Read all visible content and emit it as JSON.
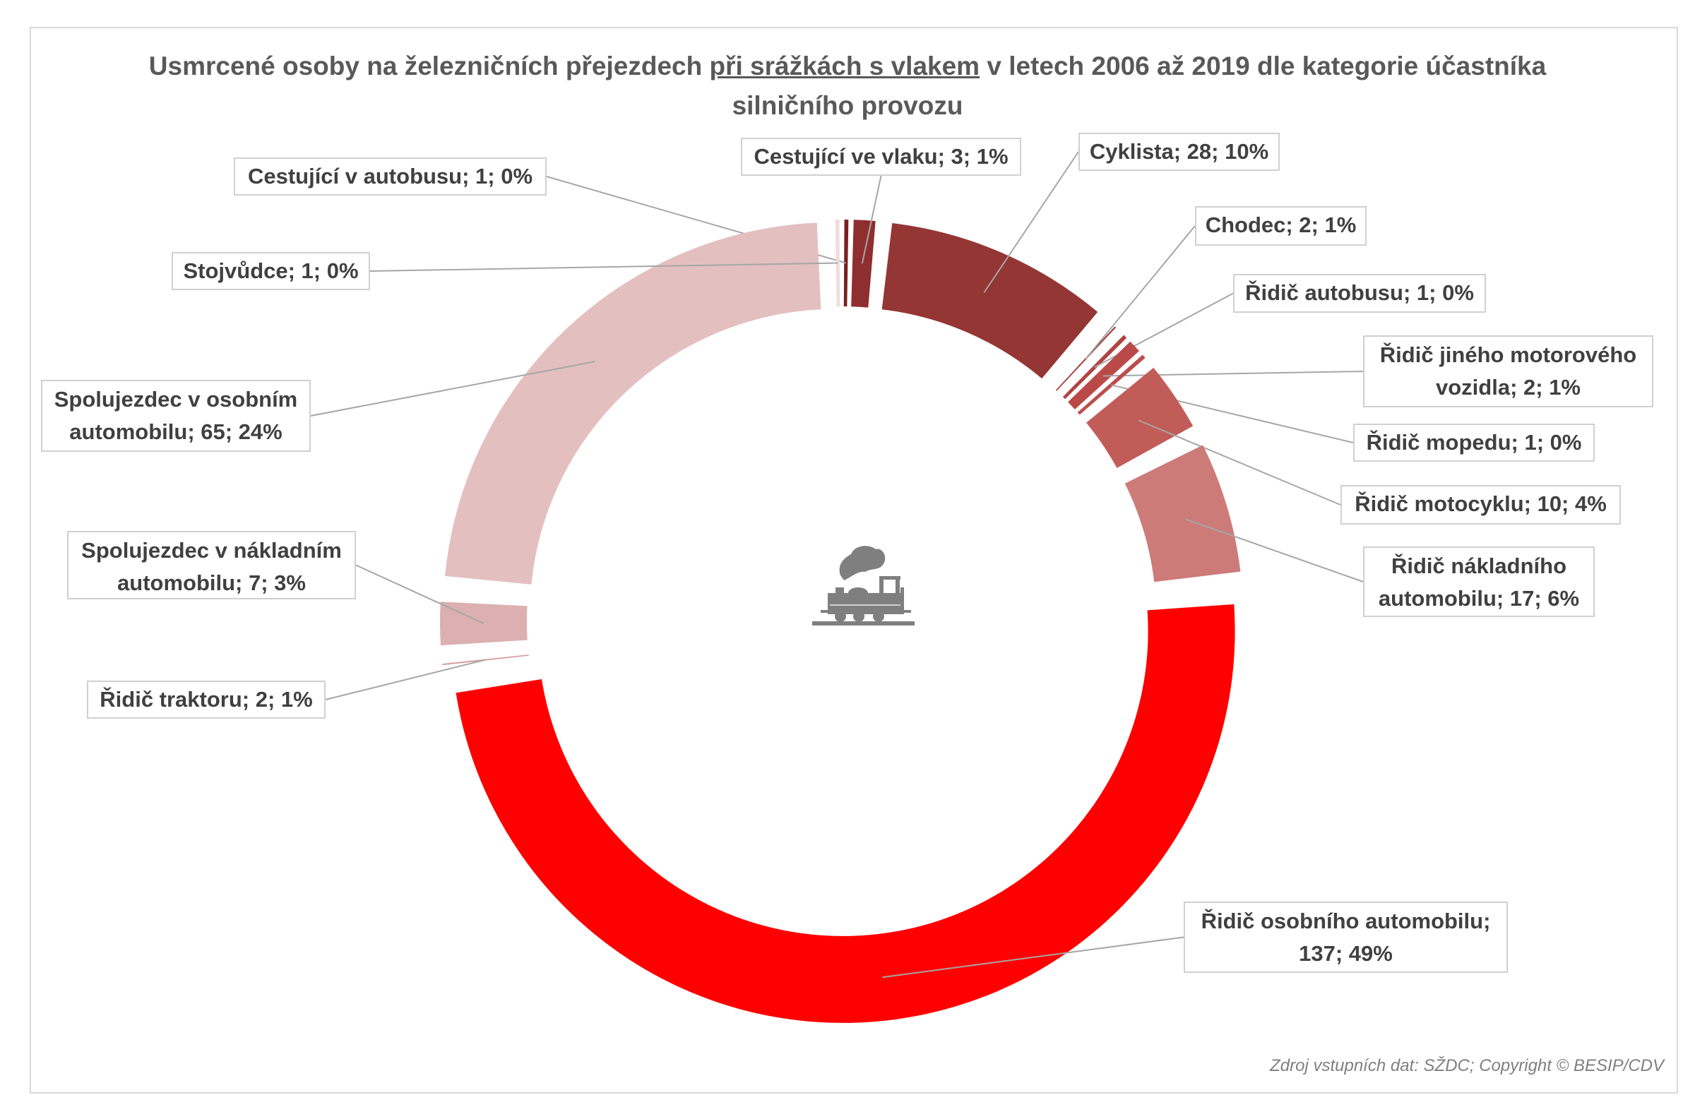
{
  "chart_data": {
    "type": "pie",
    "variant": "doughnut",
    "exploded": true,
    "title_parts": [
      "Usmrcené osoby na železničních přejezdech ",
      "při srážkách s vlakem",
      " v letech 2006 až 2019 dle kategorie účastníka silničního provozu"
    ],
    "categories": [
      "Cestující v autobusu",
      "Cestující ve vlaku",
      "Cyklista",
      "Chodec",
      "Řidič autobusu",
      "Řidič jiného motorového vozidla",
      "Řidič mopedu",
      "Řidič motocyklu",
      "Řidič nákladního automobilu",
      "Řidič osobního automobilu",
      "Řidič traktoru",
      "Spolujezdec v nákladním automobilu",
      "Spolujezdec v osobním automobilu",
      "Stojvůdce"
    ],
    "values": [
      1,
      3,
      28,
      2,
      1,
      2,
      1,
      10,
      17,
      137,
      2,
      7,
      65,
      1
    ],
    "percents": [
      "0%",
      "1%",
      "10%",
      "1%",
      "0%",
      "1%",
      "0%",
      "4%",
      "6%",
      "49%",
      "1%",
      "3%",
      "24%",
      "0%"
    ],
    "data_labels": [
      "Cestující v autobusu; 1; 0%",
      "Cestující ve vlaku; 3; 1%",
      "Cyklista; 28; 10%",
      "Chodec; 2; 1%",
      "Řidič autobusu; 1; 0%",
      "Řidič jiného motorového vozidla; 2; 1%",
      "Řidič mopedu; 1; 0%",
      "Řidič motocyklu; 10; 4%",
      "Řidič nákladního automobilu; 17; 6%",
      "Řidič osobního automobilu; 137; 49%",
      "Řidič traktoru; 2; 1%",
      "Spolujezdec v nákladním automobilu; 7; 3%",
      "Spolujezdec v osobním automobilu; 65; 24%",
      "Stojvůdce; 1; 0%"
    ],
    "colors": [
      "#7a1f1f",
      "#8f2e2e",
      "#943634",
      "#a23c3a",
      "#b04442",
      "#b94a48",
      "#bb4e4c",
      "#c25c59",
      "#cc7b79",
      "#ff0000",
      "#d9a2a2",
      "#dcb0b0",
      "#e3c0bf",
      "#f0dcdb"
    ],
    "legend": "none"
  },
  "center_icon": "steam-locomotive-icon",
  "source": "Zdroj vstupních dat: SŽDC; Copyright © BESIP/CDV"
}
